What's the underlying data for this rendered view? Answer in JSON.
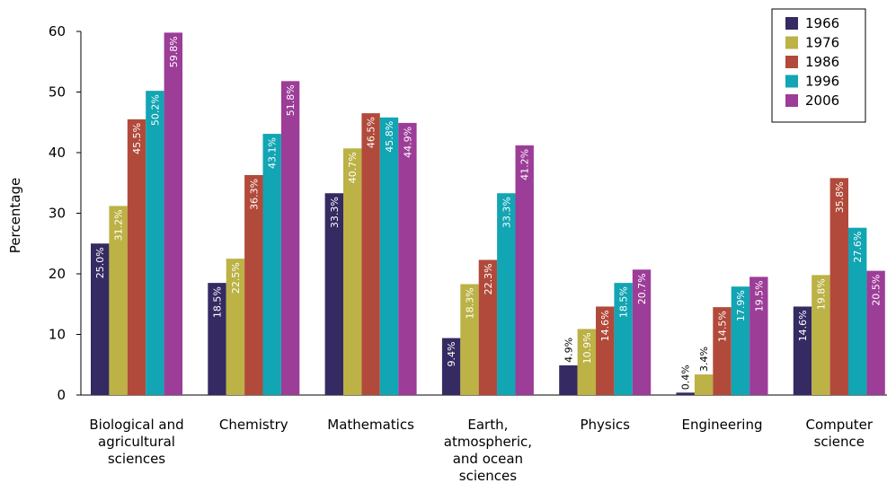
{
  "chart_data": {
    "type": "bar",
    "title": "",
    "xlabel": "",
    "ylabel": "Percentage",
    "ylim": [
      0,
      60
    ],
    "yticks": [
      0,
      10,
      20,
      30,
      40,
      50,
      60
    ],
    "grid": false,
    "legend_position": "top-right",
    "categories": [
      [
        "Biological and",
        "agricultural",
        "sciences"
      ],
      [
        "Chemistry"
      ],
      [
        "Mathematics"
      ],
      [
        "Earth,",
        "atmospheric,",
        "and ocean",
        "sciences"
      ],
      [
        "Physics"
      ],
      [
        "Engineering"
      ],
      [
        "Computer",
        "science"
      ]
    ],
    "series": [
      {
        "name": "1966",
        "color": "#352a62",
        "values": [
          25.0,
          18.5,
          33.3,
          9.4,
          4.9,
          0.4,
          14.6
        ],
        "labels": [
          "25.0%",
          "18.5%",
          "33.3%",
          "9.4%",
          "4.9%",
          "0.4%",
          "14.6%"
        ]
      },
      {
        "name": "1976",
        "color": "#bcb245",
        "values": [
          31.2,
          22.5,
          40.7,
          18.3,
          10.9,
          3.4,
          19.8
        ],
        "labels": [
          "31.2%",
          "22.5%",
          "40.7%",
          "18.3%",
          "10.9%",
          "3.4%",
          "19.8%"
        ]
      },
      {
        "name": "1986",
        "color": "#b24a3b",
        "values": [
          45.5,
          36.3,
          46.5,
          22.3,
          14.6,
          14.5,
          35.8
        ],
        "labels": [
          "45.5%",
          "36.3%",
          "46.5%",
          "22.3%",
          "14.6%",
          "14.5%",
          "35.8%"
        ]
      },
      {
        "name": "1996",
        "color": "#12a5b4",
        "values": [
          50.2,
          43.1,
          45.8,
          33.3,
          18.5,
          17.9,
          27.6
        ],
        "labels": [
          "50.2%",
          "43.1%",
          "45.8%",
          "33.3%",
          "18.5%",
          "17.9%",
          "27.6%"
        ]
      },
      {
        "name": "2006",
        "color": "#9c3d98",
        "values": [
          59.8,
          51.8,
          44.9,
          41.2,
          20.7,
          19.5,
          20.5
        ],
        "labels": [
          "59.8%",
          "51.8%",
          "44.9%",
          "41.2%",
          "20.7%",
          "19.5%",
          "20.5%"
        ]
      }
    ]
  }
}
